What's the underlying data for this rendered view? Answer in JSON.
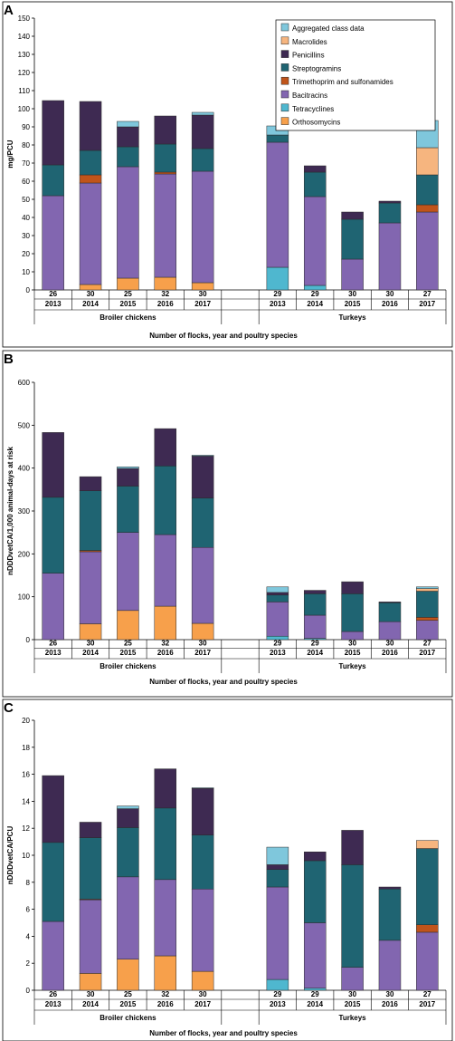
{
  "colors": {
    "Orthosomycins": "#f7a04b",
    "Tetracyclines": "#4fb7cf",
    "Bacitracins": "#8266b0",
    "Trimethoprim and sulfonamides": "#c0541a",
    "Streptogramins": "#1f6472",
    "Penicillins": "#3e2a52",
    "Macrolides": "#f6b57f",
    "Aggregated class data": "#7fc7dc"
  },
  "legend_order": [
    "Aggregated class data",
    "Macrolides",
    "Penicillins",
    "Streptogramins",
    "Trimethoprim and sulfonamides",
    "Bacitracins",
    "Tetracyclines",
    "Orthosomycins"
  ],
  "stack_order": [
    "Orthosomycins",
    "Tetracyclines",
    "Bacitracins",
    "Trimethoprim and sulfonamides",
    "Streptogramins",
    "Penicillins",
    "Macrolides",
    "Aggregated class data"
  ],
  "chart_data": [
    {
      "panel": "A",
      "type": "bar",
      "stacked": true,
      "ylabel": "mg/PCU",
      "xlabel": "Number of flocks, year and poultry species",
      "ylim": [
        0,
        150
      ],
      "ytick_step": 10,
      "legend": "top-right",
      "groups": [
        {
          "name": "Broiler chickens",
          "flocks": [
            "26",
            "30",
            "25",
            "32",
            "30"
          ],
          "years": [
            "2013",
            "2014",
            "2015",
            "2016",
            "2017"
          ]
        },
        {
          "name": "Turkeys",
          "flocks": [
            "29",
            "29",
            "30",
            "30",
            "27"
          ],
          "years": [
            "2013",
            "2014",
            "2015",
            "2016",
            "2017"
          ]
        }
      ],
      "series": [
        {
          "name": "Orthosomycins",
          "values": [
            [
              0,
              3,
              6.5,
              7,
              4
            ],
            [
              0,
              0,
              0,
              0,
              0
            ]
          ]
        },
        {
          "name": "Tetracyclines",
          "values": [
            [
              0,
              0,
              0,
              0,
              0
            ],
            [
              12.5,
              2.5,
              0,
              0,
              0
            ]
          ]
        },
        {
          "name": "Bacitracins",
          "values": [
            [
              52,
              56,
              61.5,
              57,
              61.5
            ],
            [
              69,
              49,
              17,
              37,
              43
            ]
          ]
        },
        {
          "name": "Trimethoprim and sulfonamides",
          "values": [
            [
              0,
              4.5,
              0,
              1,
              0
            ],
            [
              0,
              0,
              0,
              0,
              4
            ]
          ]
        },
        {
          "name": "Streptogramins",
          "values": [
            [
              17,
              13.5,
              11,
              15.5,
              12.5
            ],
            [
              4,
              13.5,
              22,
              11,
              16.5
            ]
          ]
        },
        {
          "name": "Penicillins",
          "values": [
            [
              35.5,
              27,
              11,
              15.5,
              18.5
            ],
            [
              0,
              3.5,
              4,
              1,
              0
            ]
          ]
        },
        {
          "name": "Macrolides",
          "values": [
            [
              0,
              0,
              0,
              0,
              0
            ],
            [
              0,
              0,
              0,
              0,
              15
            ]
          ]
        },
        {
          "name": "Aggregated class data",
          "values": [
            [
              0,
              0,
              3,
              0,
              1.5
            ],
            [
              5,
              0,
              0,
              0,
              15
            ]
          ]
        }
      ]
    },
    {
      "panel": "B",
      "type": "bar",
      "stacked": true,
      "ylabel": "nDDDvetCA/1,000 animal-days at risk",
      "xlabel": "Number of flocks, year and poultry species",
      "ylim": [
        0,
        600
      ],
      "ytick_step": 100,
      "legend": "none",
      "groups": [
        {
          "name": "Broiler chickens",
          "flocks": [
            "26",
            "30",
            "25",
            "32",
            "30"
          ],
          "years": [
            "2013",
            "2014",
            "2015",
            "2016",
            "2017"
          ]
        },
        {
          "name": "Turkeys",
          "flocks": [
            "29",
            "29",
            "30",
            "30",
            "27"
          ],
          "years": [
            "2013",
            "2014",
            "2015",
            "2016",
            "2017"
          ]
        }
      ],
      "series": [
        {
          "name": "Orthosomycins",
          "values": [
            [
              0,
              37,
              68,
              78,
              38
            ],
            [
              0,
              0,
              0,
              0,
              0
            ]
          ]
        },
        {
          "name": "Tetracyclines",
          "values": [
            [
              0,
              0,
              0,
              0,
              0
            ],
            [
              8,
              3,
              0,
              0,
              0
            ]
          ]
        },
        {
          "name": "Bacitracins",
          "values": [
            [
              155,
              168,
              182,
              167,
              177
            ],
            [
              80,
              54,
              19,
              42,
              45
            ]
          ]
        },
        {
          "name": "Trimethoprim and sulfonamides",
          "values": [
            [
              0,
              3,
              0,
              0,
              0
            ],
            [
              0,
              0,
              0,
              0,
              7
            ]
          ]
        },
        {
          "name": "Streptogramins",
          "values": [
            [
              177,
              139,
              108,
              160,
              115
            ],
            [
              16,
              50,
              88,
              44,
              61
            ]
          ]
        },
        {
          "name": "Penicillins",
          "values": [
            [
              151,
              33,
              41,
              87,
              98
            ],
            [
              6,
              8,
              28,
              2,
              0
            ]
          ]
        },
        {
          "name": "Macrolides",
          "values": [
            [
              0,
              0,
              0,
              0,
              0
            ],
            [
              0,
              0,
              0,
              0,
              6
            ]
          ]
        },
        {
          "name": "Aggregated class data",
          "values": [
            [
              0,
              0,
              4,
              0,
              2
            ],
            [
              13,
              0,
              0,
              0,
              4
            ]
          ]
        }
      ]
    },
    {
      "panel": "C",
      "type": "bar",
      "stacked": true,
      "ylabel": "nDDDvetCA/PCU",
      "xlabel": "Number of flocks, year and poultry species",
      "ylim": [
        0,
        20
      ],
      "ytick_step": 2,
      "legend": "none",
      "groups": [
        {
          "name": "Broiler chickens",
          "flocks": [
            "26",
            "30",
            "25",
            "32",
            "30"
          ],
          "years": [
            "2013",
            "2014",
            "2015",
            "2016",
            "2017"
          ]
        },
        {
          "name": "Turkeys",
          "flocks": [
            "29",
            "29",
            "30",
            "30",
            "27"
          ],
          "years": [
            "2013",
            "2014",
            "2015",
            "2016",
            "2017"
          ]
        }
      ],
      "series": [
        {
          "name": "Orthosomycins",
          "values": [
            [
              0,
              1.25,
              2.3,
              2.55,
              1.4
            ],
            [
              0,
              0,
              0,
              0,
              0
            ]
          ]
        },
        {
          "name": "Tetracyclines",
          "values": [
            [
              0,
              0,
              0,
              0,
              0
            ],
            [
              0.8,
              0.15,
              0,
              0,
              0
            ]
          ]
        },
        {
          "name": "Bacitracins",
          "values": [
            [
              5.1,
              5.45,
              6.1,
              5.65,
              6.1
            ],
            [
              6.85,
              4.85,
              1.7,
              3.7,
              4.3
            ]
          ]
        },
        {
          "name": "Trimethoprim and sulfonamides",
          "values": [
            [
              0,
              0.05,
              0,
              0,
              0
            ],
            [
              0,
              0,
              0,
              0,
              0.55
            ]
          ]
        },
        {
          "name": "Streptogramins",
          "values": [
            [
              5.85,
              4.55,
              3.65,
              5.3,
              4.0
            ],
            [
              1.3,
              4.6,
              7.6,
              3.8,
              5.65
            ]
          ]
        },
        {
          "name": "Penicillins",
          "values": [
            [
              4.95,
              1.15,
              1.4,
              2.9,
              3.45
            ],
            [
              0.35,
              0.65,
              2.55,
              0.15,
              0
            ]
          ]
        },
        {
          "name": "Macrolides",
          "values": [
            [
              0,
              0,
              0,
              0,
              0
            ],
            [
              0,
              0,
              0,
              0,
              0.6
            ]
          ]
        },
        {
          "name": "Aggregated class data",
          "values": [
            [
              0,
              0,
              0.2,
              0,
              0.05
            ],
            [
              1.3,
              0,
              0,
              0,
              0
            ]
          ]
        }
      ]
    }
  ]
}
